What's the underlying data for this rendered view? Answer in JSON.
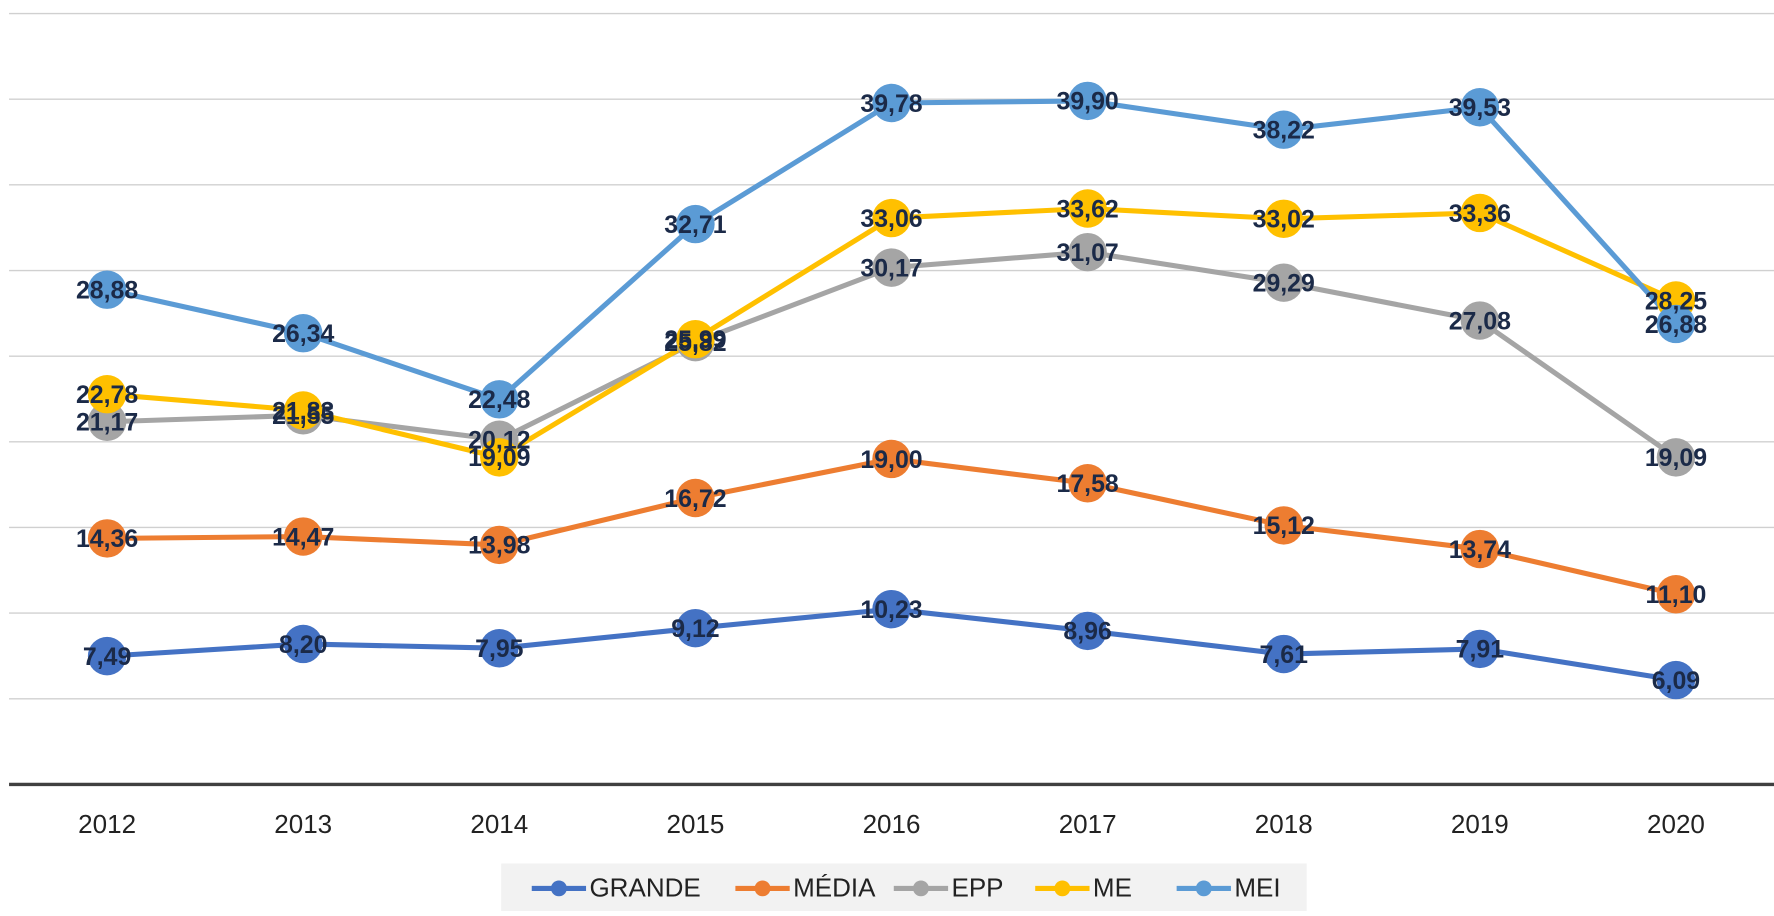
{
  "chart_data": {
    "type": "line",
    "categories": [
      "2012",
      "2013",
      "2014",
      "2015",
      "2016",
      "2017",
      "2018",
      "2019",
      "2020"
    ],
    "series": [
      {
        "name": "GRANDE",
        "color": "#4472c4",
        "values": [
          7.49,
          8.2,
          7.95,
          9.12,
          10.23,
          8.96,
          7.61,
          7.91,
          6.09
        ],
        "value_labels": [
          "7,49",
          "8,20",
          "7,95",
          "9,12",
          "10,23",
          "8,96",
          "7,61",
          "7,91",
          "6,09"
        ]
      },
      {
        "name": "MÉDIA",
        "color": "#ed7d31",
        "values": [
          14.36,
          14.47,
          13.98,
          16.72,
          19.0,
          17.58,
          15.12,
          13.74,
          11.1
        ],
        "value_labels": [
          "14,36",
          "14,47",
          "13,98",
          "16,72",
          "19,00",
          "17,58",
          "15,12",
          "13,74",
          "11,10"
        ]
      },
      {
        "name": "EPP",
        "color": "#a5a5a5",
        "values": [
          21.17,
          21.55,
          20.12,
          25.82,
          30.17,
          31.07,
          29.29,
          27.08,
          19.09
        ],
        "value_labels": [
          "21,17",
          "21,55",
          "20,12",
          "25,82",
          "30,17",
          "31,07",
          "29,29",
          "27,08",
          "19,09"
        ]
      },
      {
        "name": "ME",
        "color": "#ffc000",
        "values": [
          22.78,
          21.83,
          19.09,
          25.99,
          33.06,
          33.62,
          33.02,
          33.36,
          28.25
        ],
        "value_labels": [
          "22,78",
          "21,83",
          "19,09",
          "25,99",
          "33,06",
          "33,62",
          "33,02",
          "33,36",
          "28,25"
        ]
      },
      {
        "name": "MEI",
        "color": "#5b9bd5",
        "values": [
          28.88,
          26.34,
          22.48,
          32.71,
          39.78,
          39.9,
          38.22,
          39.53,
          26.88
        ],
        "value_labels": [
          "28,88",
          "26,34",
          "22,48",
          "32,71",
          "39,78",
          "39,90",
          "38,22",
          "39,53",
          "26,88"
        ]
      }
    ],
    "ylim": [
      0,
      45
    ],
    "yticks": [
      5,
      10,
      15,
      20,
      25,
      30,
      35,
      40,
      45
    ],
    "grid": true,
    "legend": "bottom"
  }
}
